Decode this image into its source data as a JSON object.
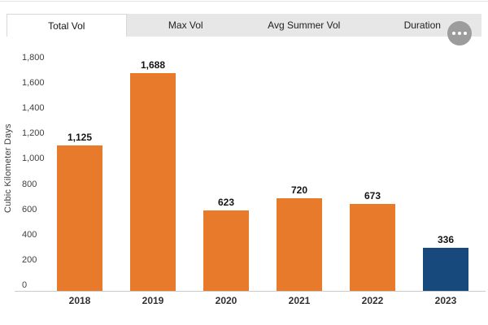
{
  "header": {
    "tabs": [
      {
        "label": "Total Vol",
        "active": true
      },
      {
        "label": "Max Vol",
        "active": false
      },
      {
        "label": "Avg Summer Vol",
        "active": false
      },
      {
        "label": "Duration",
        "active": false
      }
    ],
    "more_menu_icon": "ellipsis-icon"
  },
  "chart_data": {
    "type": "bar",
    "title": "",
    "categories": [
      "2018",
      "2019",
      "2020",
      "2021",
      "2022",
      "2023"
    ],
    "values": [
      1125,
      1688,
      623,
      720,
      673,
      336
    ],
    "value_labels": [
      "1,125",
      "1,688",
      "623",
      "720",
      "673",
      "336"
    ],
    "bar_colors": [
      "#E87A2B",
      "#E87A2B",
      "#E87A2B",
      "#E87A2B",
      "#E87A2B",
      "#17497D"
    ],
    "xlabel": "",
    "ylabel": "Cubic Kilometer Days",
    "ylim": [
      0,
      1800
    ],
    "ytick_interval": 200,
    "grid": false,
    "legend": "none"
  },
  "colors": {
    "tab_bar_bg": "#E7E7E7",
    "active_tab_bg": "#FFFFFF",
    "menu_circle": "#9C9C9C",
    "axis_line": "#CBCBCB",
    "bar_default": "#E87A2B",
    "bar_highlight": "#17497D"
  }
}
